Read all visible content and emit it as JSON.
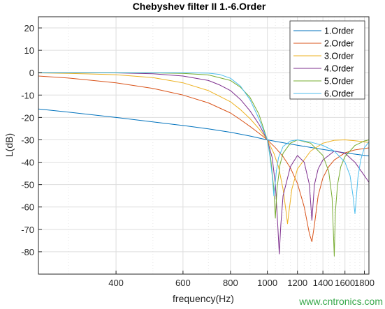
{
  "watermark": "www.cntronics.com",
  "chart_data": {
    "type": "line",
    "title": "Chebyshev filter II 1.-6.Order",
    "xlabel": "frequency(Hz)",
    "ylabel": "L(dB)",
    "x_scale": "log",
    "xlim": [
      250,
      1850
    ],
    "ylim": [
      -90,
      25
    ],
    "x_ticks": [
      400,
      600,
      800,
      1000,
      1200,
      1400,
      1600,
      1800
    ],
    "x_tick_labels": [
      "400",
      "600",
      "800",
      "1000",
      "1200",
      "1400",
      "1600",
      "1800"
    ],
    "y_ticks": [
      20,
      10,
      0,
      -10,
      -20,
      -30,
      -40,
      -50,
      -60,
      -70,
      -80
    ],
    "grid": true,
    "legend_position": "top-right",
    "series": [
      {
        "name": "1.Order",
        "color": "#0072bd",
        "x": [
          250,
          300,
          400,
          500,
          600,
          700,
          800,
          900,
          1000,
          1100,
          1200,
          1300,
          1400,
          1500,
          1600,
          1700,
          1850
        ],
        "y": [
          -16.2,
          -17.6,
          -20.0,
          -22.0,
          -23.6,
          -25.1,
          -26.6,
          -28.3,
          -30.0,
          -31.3,
          -32.4,
          -33.4,
          -34.3,
          -35.1,
          -35.8,
          -36.4,
          -37.2
        ]
      },
      {
        "name": "2.Order",
        "color": "#d95319",
        "x": [
          250,
          300,
          400,
          500,
          600,
          700,
          800,
          850,
          900,
          950,
          1000,
          1050,
          1100,
          1150,
          1200,
          1250,
          1290,
          1310,
          1330,
          1360,
          1400,
          1450,
          1500,
          1600,
          1700,
          1850
        ],
        "y": [
          -1.5,
          -2.4,
          -4.5,
          -7.0,
          -10.0,
          -13.5,
          -18.0,
          -21.0,
          -24.0,
          -27.0,
          -30.0,
          -33.5,
          -37.5,
          -42.5,
          -49.5,
          -60.0,
          -72.0,
          -75.5,
          -68.0,
          -55.0,
          -47.0,
          -42.0,
          -39.0,
          -35.8,
          -34.5,
          -33.6
        ]
      },
      {
        "name": "3.Order",
        "color": "#edb120",
        "x": [
          250,
          300,
          400,
          500,
          600,
          700,
          800,
          850,
          900,
          950,
          1000,
          1040,
          1070,
          1100,
          1120,
          1130,
          1140,
          1160,
          1200,
          1300,
          1400,
          1500,
          1600,
          1700,
          1850
        ],
        "y": [
          -0.1,
          -0.3,
          -0.9,
          -2.2,
          -4.5,
          -8.0,
          -13.0,
          -16.5,
          -20.5,
          -25.0,
          -30.0,
          -36.0,
          -42.0,
          -52.0,
          -62.0,
          -67.5,
          -62.0,
          -52.0,
          -43.0,
          -35.0,
          -31.5,
          -30.2,
          -30.0,
          -30.4,
          -31.2
        ]
      },
      {
        "name": "4.Order",
        "color": "#7e2f8e",
        "x": [
          250,
          300,
          400,
          500,
          600,
          700,
          750,
          800,
          850,
          900,
          950,
          1000,
          1030,
          1050,
          1065,
          1075,
          1085,
          1100,
          1150,
          1200,
          1250,
          1290,
          1310,
          1330,
          1360,
          1400,
          1500,
          1600,
          1700,
          1800,
          1850
        ],
        "y": [
          0.0,
          0.0,
          -0.1,
          -0.5,
          -1.5,
          -3.5,
          -5.5,
          -8.0,
          -12.0,
          -17.0,
          -23.0,
          -30.0,
          -38.0,
          -50.0,
          -68.0,
          -81.0,
          -68.0,
          -55.0,
          -42.0,
          -37.0,
          -40.0,
          -50.0,
          -66.0,
          -50.0,
          -43.0,
          -39.0,
          -35.0,
          -36.0,
          -40.0,
          -46.0,
          -49.0
        ]
      },
      {
        "name": "5.Order",
        "color": "#77ac30",
        "x": [
          250,
          300,
          400,
          500,
          600,
          700,
          800,
          850,
          900,
          950,
          1000,
          1020,
          1040,
          1050,
          1060,
          1080,
          1100,
          1150,
          1200,
          1300,
          1400,
          1450,
          1480,
          1500,
          1510,
          1530,
          1560,
          1600,
          1700,
          1800,
          1850
        ],
        "y": [
          0.0,
          0.0,
          0.0,
          -0.1,
          -0.3,
          -1.0,
          -3.5,
          -6.5,
          -11.0,
          -18.5,
          -30.0,
          -38.0,
          -52.0,
          -65.0,
          -52.0,
          -41.0,
          -36.0,
          -31.5,
          -30.0,
          -31.5,
          -37.0,
          -44.0,
          -56.0,
          -82.0,
          -62.0,
          -50.0,
          -42.0,
          -37.5,
          -32.5,
          -30.5,
          -30.0
        ]
      },
      {
        "name": "6.Order",
        "color": "#4dbeee",
        "x": [
          250,
          300,
          400,
          500,
          600,
          700,
          750,
          800,
          850,
          900,
          950,
          1000,
          1015,
          1030,
          1040,
          1048,
          1056,
          1070,
          1100,
          1150,
          1200,
          1300,
          1400,
          1500,
          1600,
          1650,
          1680,
          1700,
          1710,
          1730,
          1760,
          1800,
          1850
        ],
        "y": [
          0.0,
          0.0,
          0.0,
          0.0,
          0.0,
          -0.2,
          -0.8,
          -2.5,
          -6.0,
          -12.0,
          -20.5,
          -30.0,
          -37.0,
          -46.0,
          -55.0,
          -50.0,
          -44.0,
          -38.0,
          -33.0,
          -30.5,
          -30.0,
          -31.0,
          -32.5,
          -35.0,
          -40.0,
          -46.0,
          -55.0,
          -63.0,
          -58.0,
          -47.0,
          -39.0,
          -33.5,
          -31.0
        ]
      }
    ]
  }
}
